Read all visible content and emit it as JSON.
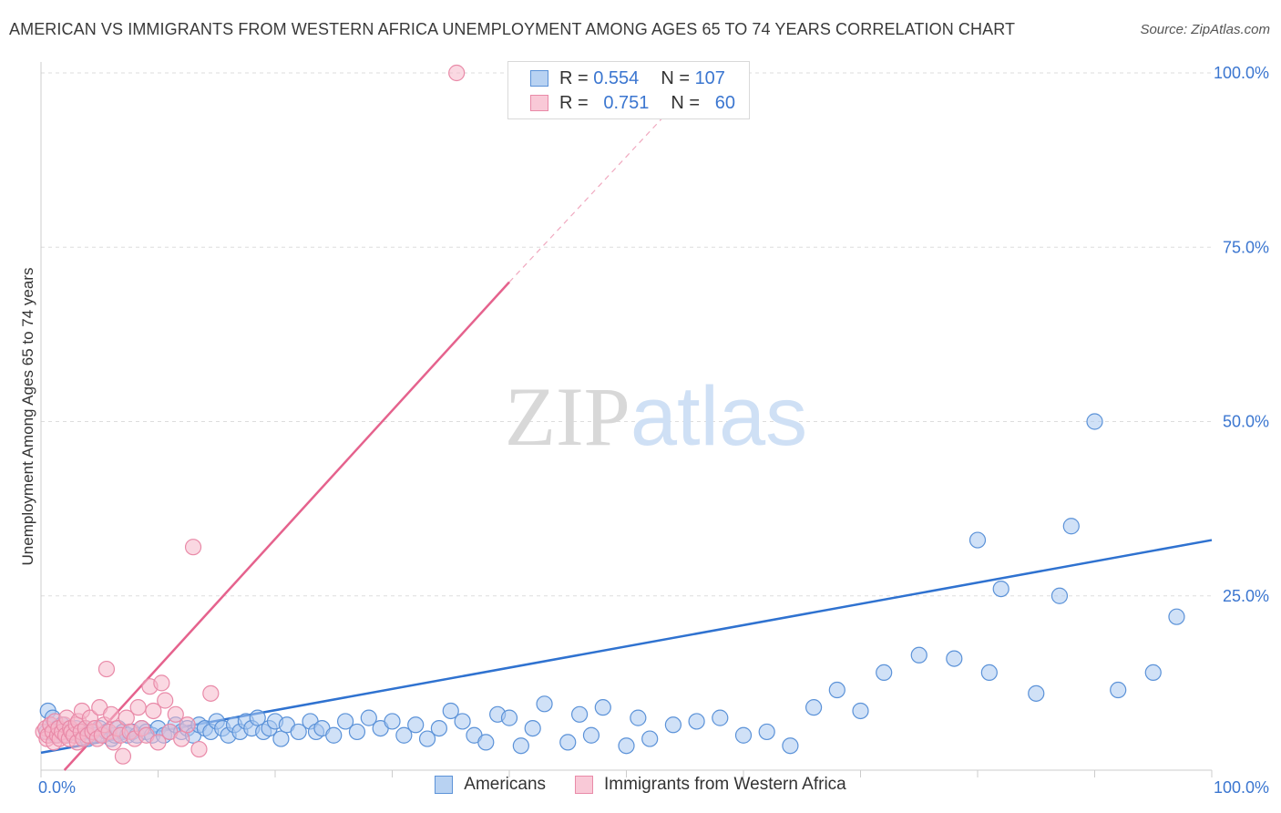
{
  "header": {
    "title": "AMERICAN VS IMMIGRANTS FROM WESTERN AFRICA UNEMPLOYMENT AMONG AGES 65 TO 74 YEARS CORRELATION CHART",
    "source": "Source: ZipAtlas.com"
  },
  "watermark": {
    "part1": "ZIP",
    "part2": "atlas"
  },
  "legend_top": [
    {
      "r_label": "R =",
      "r_value": "0.554",
      "n_label": "N =",
      "n_value": "107"
    },
    {
      "r_label": "R =",
      "r_value": "0.751",
      "n_label": "N =",
      "n_value": "60"
    }
  ],
  "colors": {
    "americans_fill": "#a9c8f0",
    "americans_stroke": "#5b92d8",
    "americans_line": "#2f72d0",
    "immigrants_fill": "#f6b8cb",
    "immigrants_stroke": "#e98aa8",
    "immigrants_line": "#e5628d",
    "tick_label": "#3b76d0",
    "grid": "#dddddd"
  },
  "chart_data": {
    "type": "scatter",
    "title": "AMERICAN VS IMMIGRANTS FROM WESTERN AFRICA UNEMPLOYMENT AMONG AGES 65 TO 74 YEARS CORRELATION CHART",
    "xlabel": "",
    "ylabel": "Unemployment Among Ages 65 to 74 years",
    "xlim": [
      0,
      100
    ],
    "ylim": [
      0,
      100
    ],
    "x_tick_labels": [
      "0.0%",
      "100.0%"
    ],
    "y_ticks": [
      25,
      50,
      75,
      100
    ],
    "y_tick_labels": [
      "25.0%",
      "50.0%",
      "75.0%",
      "100.0%"
    ],
    "grid": true,
    "series": [
      {
        "name": "Americans",
        "r": 0.554,
        "n": 107,
        "trend": {
          "x0": 0,
          "y0": 2.5,
          "x1": 100,
          "y1": 33.0
        },
        "points": [
          [
            0.5,
            5.5
          ],
          [
            0.6,
            8.5
          ],
          [
            0.8,
            6.5
          ],
          [
            1.0,
            7.5
          ],
          [
            1.2,
            5.0
          ],
          [
            1.4,
            6.0
          ],
          [
            1.6,
            5.5
          ],
          [
            1.8,
            6.5
          ],
          [
            2.0,
            5.5
          ],
          [
            2.2,
            5.0
          ],
          [
            2.5,
            6.0
          ],
          [
            2.7,
            5.5
          ],
          [
            3.0,
            6.0
          ],
          [
            3.3,
            5.0
          ],
          [
            3.5,
            5.5
          ],
          [
            3.8,
            6.0
          ],
          [
            4.0,
            4.5
          ],
          [
            4.3,
            5.5
          ],
          [
            4.6,
            5.0
          ],
          [
            5.0,
            6.0
          ],
          [
            5.3,
            5.0
          ],
          [
            5.6,
            5.5
          ],
          [
            6.0,
            4.5
          ],
          [
            6.3,
            5.0
          ],
          [
            6.6,
            6.0
          ],
          [
            7.0,
            5.5
          ],
          [
            7.4,
            5.0
          ],
          [
            7.8,
            5.5
          ],
          [
            8.2,
            5.0
          ],
          [
            8.6,
            6.0
          ],
          [
            9.0,
            5.5
          ],
          [
            9.5,
            5.0
          ],
          [
            10,
            6.0
          ],
          [
            10.5,
            5.0
          ],
          [
            11,
            5.5
          ],
          [
            11.5,
            6.5
          ],
          [
            12,
            5.5
          ],
          [
            12.5,
            6.0
          ],
          [
            13,
            5.0
          ],
          [
            13.5,
            6.5
          ],
          [
            14,
            6.0
          ],
          [
            14.5,
            5.5
          ],
          [
            15,
            7.0
          ],
          [
            15.5,
            6.0
          ],
          [
            16,
            5.0
          ],
          [
            16.5,
            6.5
          ],
          [
            17,
            5.5
          ],
          [
            17.5,
            7.0
          ],
          [
            18,
            6.0
          ],
          [
            18.5,
            7.5
          ],
          [
            19,
            5.5
          ],
          [
            19.5,
            6.0
          ],
          [
            20,
            7.0
          ],
          [
            20.5,
            4.5
          ],
          [
            21,
            6.5
          ],
          [
            22,
            5.5
          ],
          [
            23,
            7.0
          ],
          [
            23.5,
            5.5
          ],
          [
            24,
            6.0
          ],
          [
            25,
            5.0
          ],
          [
            26,
            7.0
          ],
          [
            27,
            5.5
          ],
          [
            28,
            7.5
          ],
          [
            29,
            6.0
          ],
          [
            30,
            7.0
          ],
          [
            31,
            5.0
          ],
          [
            32,
            6.5
          ],
          [
            33,
            4.5
          ],
          [
            34,
            6.0
          ],
          [
            35,
            8.5
          ],
          [
            36,
            7.0
          ],
          [
            37,
            5.0
          ],
          [
            38,
            4.0
          ],
          [
            39,
            8.0
          ],
          [
            40,
            7.5
          ],
          [
            41,
            3.5
          ],
          [
            42,
            6.0
          ],
          [
            43,
            9.5
          ],
          [
            45,
            4.0
          ],
          [
            46,
            8.0
          ],
          [
            47,
            5.0
          ],
          [
            48,
            9.0
          ],
          [
            50,
            3.5
          ],
          [
            51,
            7.5
          ],
          [
            52,
            4.5
          ],
          [
            54,
            6.5
          ],
          [
            56,
            7.0
          ],
          [
            58,
            7.5
          ],
          [
            60,
            5.0
          ],
          [
            62,
            5.5
          ],
          [
            64,
            3.5
          ],
          [
            66,
            9.0
          ],
          [
            68,
            11.5
          ],
          [
            70,
            8.5
          ],
          [
            72,
            14.0
          ],
          [
            75,
            16.5
          ],
          [
            78,
            16.0
          ],
          [
            80,
            33.0
          ],
          [
            81,
            14.0
          ],
          [
            82,
            26.0
          ],
          [
            85,
            11.0
          ],
          [
            87,
            25.0
          ],
          [
            88,
            35.0
          ],
          [
            90,
            50.0
          ],
          [
            92,
            11.5
          ],
          [
            95,
            14.0
          ],
          [
            97,
            22.0
          ]
        ]
      },
      {
        "name": "Immigrants from Western Africa",
        "r": 0.751,
        "n": 60,
        "trend": {
          "x0": 2.0,
          "y0": 0,
          "x1": 40,
          "y1": 70
        },
        "trend_dashed": {
          "x0": 40,
          "y0": 70,
          "x1": 55,
          "y1": 97
        },
        "points": [
          [
            0.2,
            5.5
          ],
          [
            0.4,
            6.0
          ],
          [
            0.5,
            4.5
          ],
          [
            0.6,
            5.0
          ],
          [
            0.8,
            6.5
          ],
          [
            1.0,
            5.5
          ],
          [
            1.1,
            4.0
          ],
          [
            1.2,
            7.0
          ],
          [
            1.4,
            5.0
          ],
          [
            1.5,
            6.0
          ],
          [
            1.6,
            4.5
          ],
          [
            1.8,
            5.5
          ],
          [
            2.0,
            6.5
          ],
          [
            2.1,
            5.0
          ],
          [
            2.2,
            7.5
          ],
          [
            2.4,
            4.5
          ],
          [
            2.5,
            6.0
          ],
          [
            2.6,
            5.5
          ],
          [
            2.8,
            5.0
          ],
          [
            3.0,
            6.5
          ],
          [
            3.1,
            4.0
          ],
          [
            3.2,
            7.0
          ],
          [
            3.4,
            5.5
          ],
          [
            3.5,
            8.5
          ],
          [
            3.6,
            4.5
          ],
          [
            3.8,
            6.0
          ],
          [
            4.0,
            5.0
          ],
          [
            4.2,
            7.5
          ],
          [
            4.4,
            5.5
          ],
          [
            4.6,
            6.0
          ],
          [
            4.8,
            4.5
          ],
          [
            5.0,
            9.0
          ],
          [
            5.2,
            5.0
          ],
          [
            5.4,
            6.5
          ],
          [
            5.6,
            14.5
          ],
          [
            5.8,
            5.5
          ],
          [
            6.0,
            8.0
          ],
          [
            6.2,
            4.0
          ],
          [
            6.5,
            6.0
          ],
          [
            6.8,
            5.0
          ],
          [
            7.0,
            2.0
          ],
          [
            7.3,
            7.5
          ],
          [
            7.6,
            5.5
          ],
          [
            8.0,
            4.5
          ],
          [
            8.3,
            9.0
          ],
          [
            8.6,
            6.0
          ],
          [
            9.0,
            5.0
          ],
          [
            9.3,
            12.0
          ],
          [
            9.6,
            8.5
          ],
          [
            10.0,
            4.0
          ],
          [
            10.3,
            12.5
          ],
          [
            10.6,
            10.0
          ],
          [
            11.0,
            5.5
          ],
          [
            11.5,
            8.0
          ],
          [
            12.0,
            4.5
          ],
          [
            12.5,
            6.5
          ],
          [
            13,
            32.0
          ],
          [
            13.5,
            3.0
          ],
          [
            14.5,
            11.0
          ],
          [
            35.5,
            100.0
          ]
        ]
      }
    ]
  },
  "legend_bottom": [
    {
      "label": "Americans"
    },
    {
      "label": "Immigrants from Western Africa"
    }
  ]
}
